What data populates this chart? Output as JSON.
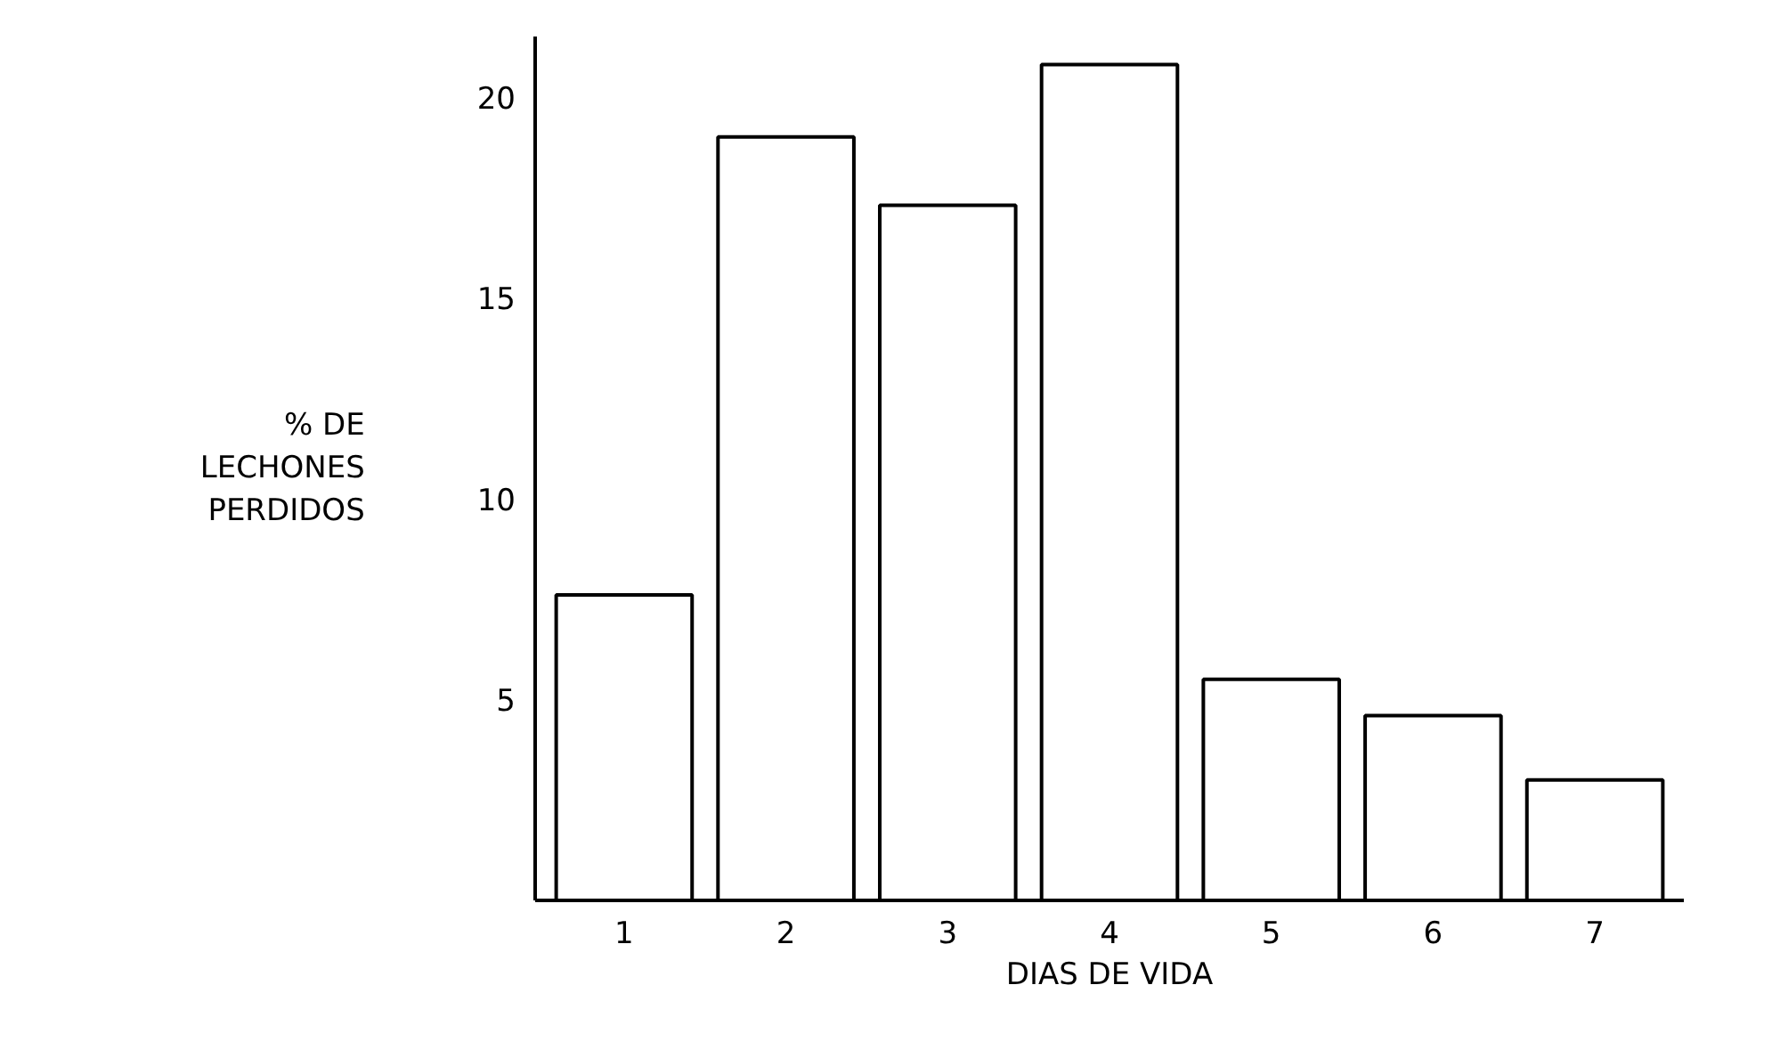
{
  "chart_data": {
    "type": "bar",
    "xlabel": "DIAS DE VIDA",
    "ylabel": "% DE\nLECHONES\nPERDIDOS",
    "categories": [
      "1",
      "2",
      "3",
      "4",
      "5",
      "6",
      "7"
    ],
    "values": [
      7.6,
      19.0,
      17.3,
      20.8,
      5.5,
      4.6,
      3.0
    ],
    "color": "#ffffff",
    "ylim": [
      0,
      21.5
    ],
    "yticks": [
      5,
      10,
      15,
      20
    ],
    "grid": false
  }
}
